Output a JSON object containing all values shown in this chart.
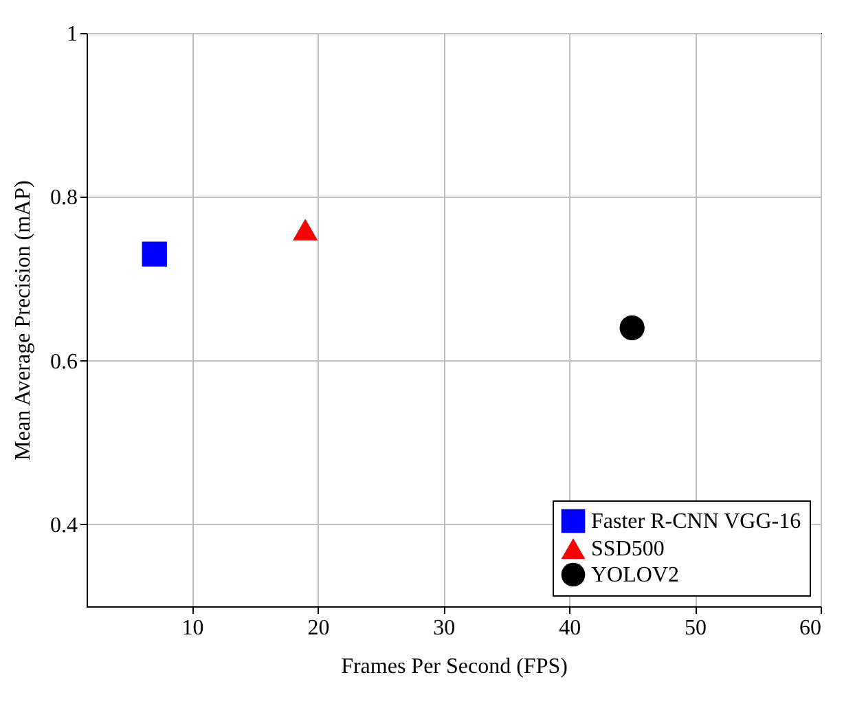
{
  "chart_data": {
    "type": "scatter",
    "xlabel": "Frames Per Second (FPS)",
    "ylabel": "Mean Average Precision (mAP)",
    "xlim": [
      1.6,
      60
    ],
    "xticks": [
      10,
      20,
      30,
      40,
      50,
      60
    ],
    "ylim": [
      0.3,
      1
    ],
    "yticks": [
      0.4,
      0.6,
      0.8,
      1
    ],
    "grid": true,
    "legend": "bottom right",
    "series": [
      {
        "name": "Faster R-CNN VGG-16",
        "color": "#0000ff",
        "marker": "square",
        "x": [
          7
        ],
        "values": [
          0.73
        ]
      },
      {
        "name": "SSD500",
        "color": "#ff0000",
        "marker": "triangle",
        "x": [
          19
        ],
        "values": [
          0.76
        ]
      },
      {
        "name": "YOLOV2",
        "color": "#000000",
        "marker": "circle",
        "x": [
          45
        ],
        "values": [
          0.64
        ]
      }
    ]
  }
}
